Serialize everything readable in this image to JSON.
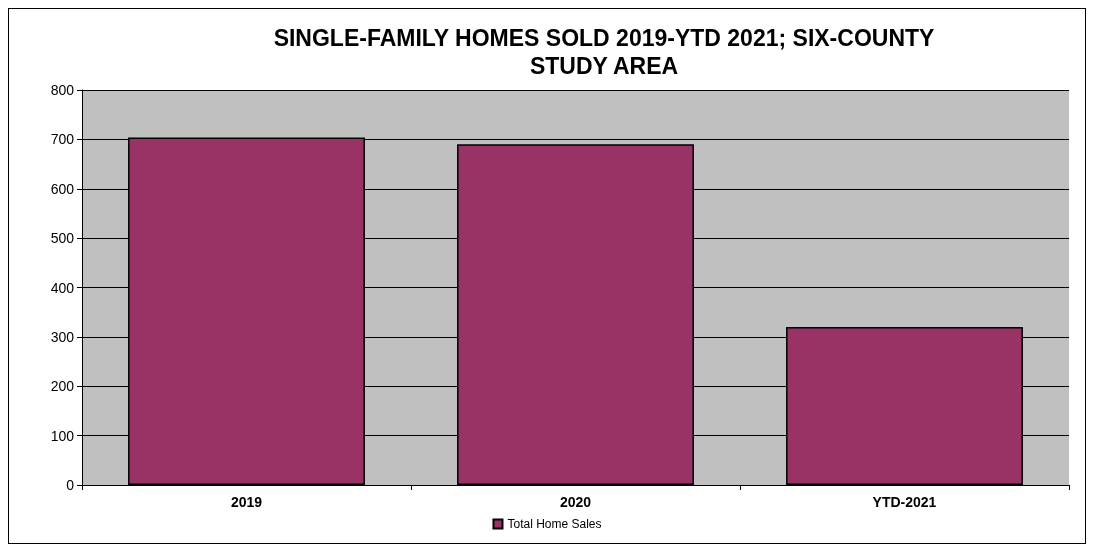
{
  "chart_data": {
    "type": "bar",
    "title": "SINGLE-FAMILY HOMES SOLD 2019-YTD 2021; SIX-COUNTY\nSTUDY AREA",
    "categories": [
      "2019",
      "2020",
      "YTD-2021"
    ],
    "series": [
      {
        "name": "Total Home Sales",
        "color": "#993366",
        "values": [
          704,
          690,
          320
        ]
      }
    ],
    "ylim": [
      0,
      800
    ],
    "yticks": [
      0,
      100,
      200,
      300,
      400,
      500,
      600,
      700,
      800
    ],
    "grid": "y",
    "legend": "bottom"
  }
}
